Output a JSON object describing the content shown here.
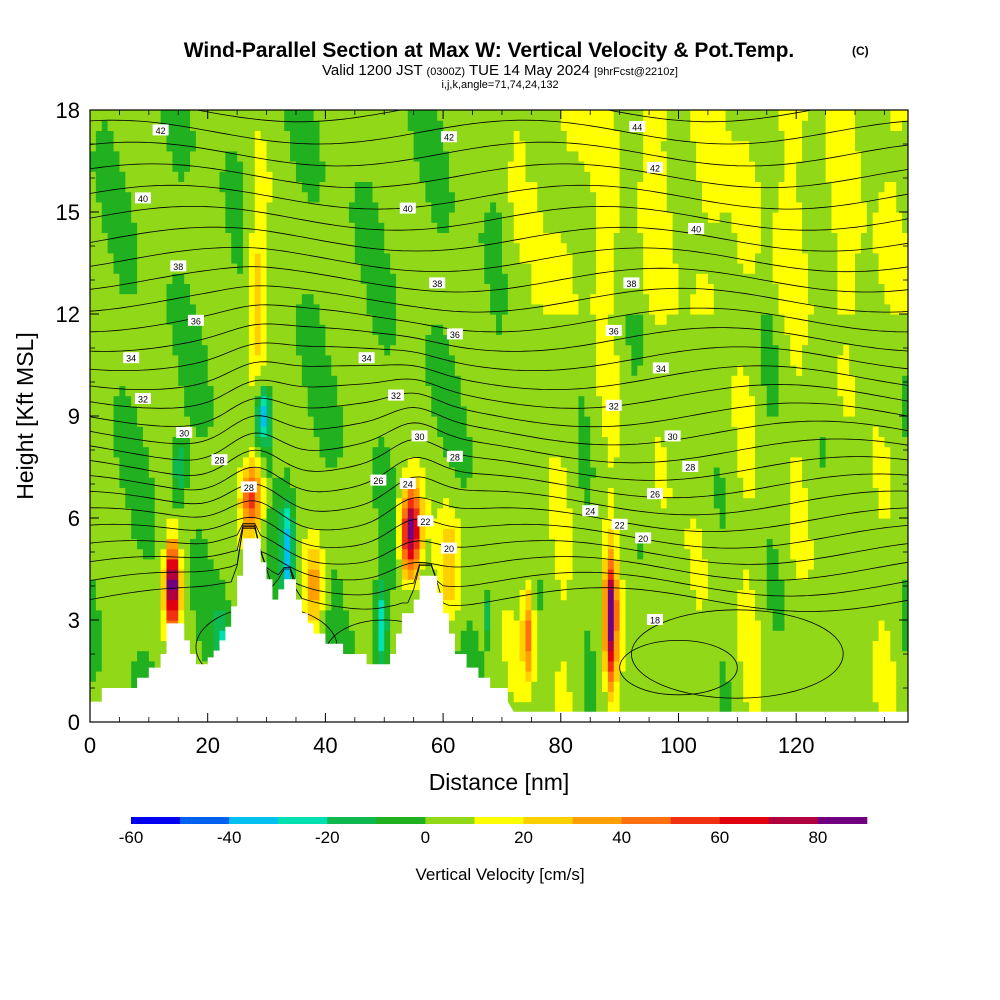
{
  "chart_data": {
    "type": "cross-section",
    "title": "Wind-Parallel Section at Max W: Vertical Velocity & Pot.Temp.",
    "title_mark": "(C)",
    "subtitle": {
      "a": "Valid 1200 JST",
      "b": "(0300Z)",
      "c": "TUE 14 May 2024",
      "d": "[9hrFcst@2210z]"
    },
    "ijk": "i,j,k,angle=71,74,24,132",
    "xlabel": "Distance [nm]",
    "ylabel": "Height [Kft MSL]",
    "xlim": [
      0,
      139
    ],
    "ylim": [
      0,
      18
    ],
    "xticks": [
      0,
      20,
      40,
      60,
      80,
      100,
      120
    ],
    "yticks": [
      0,
      3,
      6,
      9,
      12,
      15,
      18
    ],
    "colorbar": {
      "label": "Vertical Velocity [cm/s]",
      "range": [
        -60,
        90
      ],
      "ticks": [
        -60,
        -40,
        -20,
        0,
        20,
        40,
        60,
        80
      ],
      "colors": [
        "#0000f0",
        "#0060f0",
        "#00c0f0",
        "#00e0b0",
        "#10b850",
        "#20b020",
        "#90d818",
        "#ffff00",
        "#ffd000",
        "#ffa000",
        "#ff7010",
        "#f03010",
        "#e00010",
        "#b00040",
        "#700080"
      ]
    },
    "terrain": [
      [
        0,
        0.6
      ],
      [
        2,
        0.6
      ],
      [
        2,
        1
      ],
      [
        8,
        1
      ],
      [
        8,
        1.3
      ],
      [
        10,
        1.3
      ],
      [
        10,
        1.6
      ],
      [
        12,
        1.6
      ],
      [
        12,
        2
      ],
      [
        13,
        2
      ],
      [
        13,
        2.9
      ],
      [
        16,
        2.9
      ],
      [
        16,
        2.4
      ],
      [
        17,
        2.4
      ],
      [
        17,
        2
      ],
      [
        18,
        2
      ],
      [
        18,
        1.7
      ],
      [
        20,
        1.7
      ],
      [
        20,
        1.9
      ],
      [
        21,
        1.9
      ],
      [
        21,
        2.1
      ],
      [
        22,
        2.1
      ],
      [
        22,
        2.4
      ],
      [
        23,
        2.4
      ],
      [
        23,
        2.8
      ],
      [
        24,
        2.8
      ],
      [
        24,
        3.4
      ],
      [
        25,
        3.4
      ],
      [
        25,
        4.3
      ],
      [
        26,
        4.3
      ],
      [
        26,
        5.4
      ],
      [
        29,
        5.4
      ],
      [
        29,
        4.7
      ],
      [
        30,
        4.7
      ],
      [
        30,
        4.2
      ],
      [
        31,
        4.2
      ],
      [
        31,
        3.6
      ],
      [
        32,
        3.6
      ],
      [
        32,
        3.9
      ],
      [
        33,
        3.9
      ],
      [
        33,
        4.2
      ],
      [
        35,
        4.2
      ],
      [
        35,
        3.6
      ],
      [
        36,
        3.6
      ],
      [
        36,
        3.2
      ],
      [
        37,
        3.2
      ],
      [
        37,
        2.9
      ],
      [
        38,
        2.9
      ],
      [
        38,
        2.6
      ],
      [
        40,
        2.6
      ],
      [
        40,
        2.3
      ],
      [
        43,
        2.3
      ],
      [
        43,
        2
      ],
      [
        47,
        2
      ],
      [
        47,
        1.7
      ],
      [
        51,
        1.7
      ],
      [
        51,
        2
      ],
      [
        52,
        2
      ],
      [
        52,
        2.6
      ],
      [
        53,
        2.6
      ],
      [
        53,
        3.2
      ],
      [
        55,
        3.2
      ],
      [
        55,
        3.6
      ],
      [
        56,
        3.6
      ],
      [
        56,
        4.3
      ],
      [
        59,
        4.3
      ],
      [
        59,
        3.8
      ],
      [
        60,
        3.8
      ],
      [
        60,
        3.2
      ],
      [
        61,
        3.2
      ],
      [
        61,
        2.6
      ],
      [
        62,
        2.6
      ],
      [
        62,
        2
      ],
      [
        64,
        2
      ],
      [
        64,
        1.6
      ],
      [
        66,
        1.6
      ],
      [
        66,
        1.3
      ],
      [
        68,
        1.3
      ],
      [
        68,
        1
      ],
      [
        71,
        1
      ],
      [
        71,
        0.6
      ],
      [
        72,
        0.3
      ],
      [
        139,
        0.3
      ]
    ],
    "contour_labels": [
      {
        "text": "42",
        "x": 12,
        "y": 17.4
      },
      {
        "text": "42",
        "x": 61,
        "y": 17.2
      },
      {
        "text": "44",
        "x": 93,
        "y": 17.5
      },
      {
        "text": "42",
        "x": 96,
        "y": 16.3
      },
      {
        "text": "40",
        "x": 9,
        "y": 15.4
      },
      {
        "text": "40",
        "x": 54,
        "y": 15.1
      },
      {
        "text": "40",
        "x": 103,
        "y": 14.5
      },
      {
        "text": "38",
        "x": 15,
        "y": 13.4
      },
      {
        "text": "38",
        "x": 59,
        "y": 12.9
      },
      {
        "text": "38",
        "x": 92,
        "y": 12.9
      },
      {
        "text": "36",
        "x": 18,
        "y": 11.8
      },
      {
        "text": "36",
        "x": 62,
        "y": 11.4
      },
      {
        "text": "36",
        "x": 89,
        "y": 11.5
      },
      {
        "text": "34",
        "x": 7,
        "y": 10.7
      },
      {
        "text": "34",
        "x": 47,
        "y": 10.7
      },
      {
        "text": "34",
        "x": 97,
        "y": 10.4
      },
      {
        "text": "32",
        "x": 9,
        "y": 9.5
      },
      {
        "text": "32",
        "x": 52,
        "y": 9.6
      },
      {
        "text": "32",
        "x": 89,
        "y": 9.3
      },
      {
        "text": "30",
        "x": 16,
        "y": 8.5
      },
      {
        "text": "30",
        "x": 56,
        "y": 8.4
      },
      {
        "text": "30",
        "x": 99,
        "y": 8.4
      },
      {
        "text": "28",
        "x": 22,
        "y": 7.7
      },
      {
        "text": "28",
        "x": 62,
        "y": 7.8
      },
      {
        "text": "28",
        "x": 102,
        "y": 7.5
      },
      {
        "text": "28",
        "x": 27,
        "y": 6.9
      },
      {
        "text": "26",
        "x": 49,
        "y": 7.1
      },
      {
        "text": "24",
        "x": 54,
        "y": 7.0
      },
      {
        "text": "26",
        "x": 96,
        "y": 6.7
      },
      {
        "text": "24",
        "x": 85,
        "y": 6.2
      },
      {
        "text": "22",
        "x": 57,
        "y": 5.9
      },
      {
        "text": "22",
        "x": 90,
        "y": 5.8
      },
      {
        "text": "20",
        "x": 61,
        "y": 5.1
      },
      {
        "text": "20",
        "x": 94,
        "y": 5.4
      },
      {
        "text": "18",
        "x": 96,
        "y": 3.0
      }
    ]
  }
}
